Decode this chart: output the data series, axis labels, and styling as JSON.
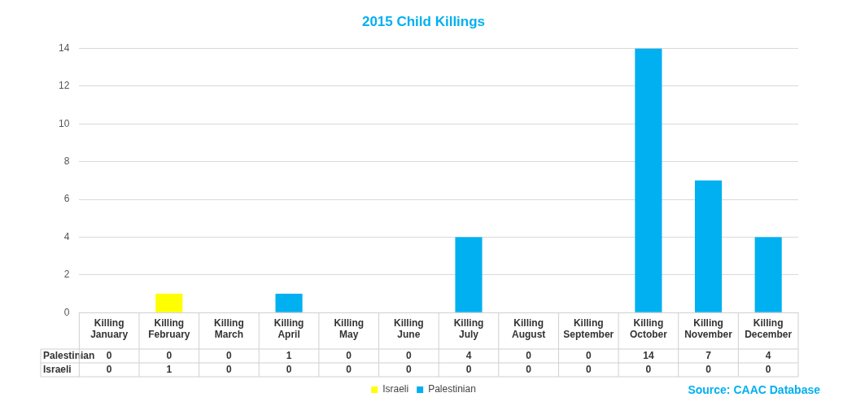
{
  "chart_data": {
    "type": "bar",
    "title": "2015 Child Killings",
    "categories": [
      "Killing January",
      "Killing February",
      "Killing March",
      "Killing April",
      "Killing May",
      "Killing June",
      "Killing July",
      "Killing August",
      "Killing September",
      "Killing October",
      "Killing November",
      "Killing December"
    ],
    "series": [
      {
        "name": "Israeli",
        "color": "#ffff00",
        "values": [
          0,
          1,
          0,
          0,
          0,
          0,
          0,
          0,
          0,
          0,
          0,
          0
        ]
      },
      {
        "name": "Palestinian",
        "color": "#00b0f0",
        "values": [
          0,
          0,
          0,
          1,
          0,
          0,
          4,
          0,
          0,
          14,
          7,
          4
        ]
      }
    ],
    "stacked": true,
    "ylim": [
      0,
      14
    ],
    "yticks": [
      0,
      2,
      4,
      6,
      8,
      10,
      12,
      14
    ],
    "grid": "y",
    "legend": "bottom",
    "data_labels": true,
    "annotations": [
      "Source: CAAC Database"
    ]
  }
}
